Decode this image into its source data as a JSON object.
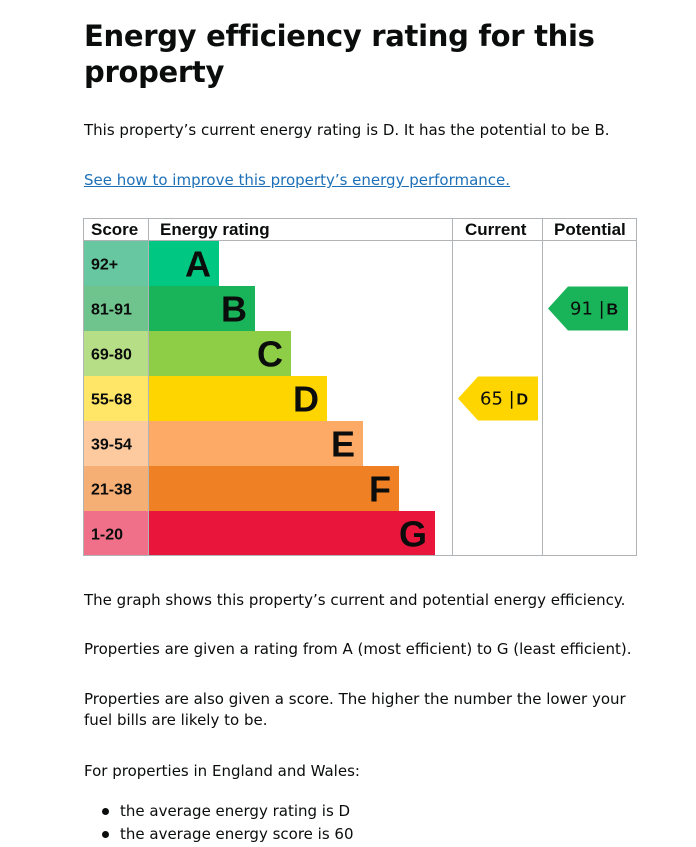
{
  "page": {
    "title": "Energy efficiency rating for this property",
    "intro": "This property’s current energy rating is D. It has the potential to be B.",
    "improve_link": "See how to improve this property’s energy performance.",
    "para1": "The graph shows this property’s current and potential energy efficiency.",
    "para2": "Properties are given a rating from A (most efficient) to G (least efficient).",
    "para3": "Properties are also given a score. The higher the number the lower your fuel bills are likely to be.",
    "para4": "For properties in England and Wales:",
    "bullets": [
      "the average energy rating is D",
      "the average energy score is 60"
    ]
  },
  "chart_data": {
    "type": "bar",
    "columns": [
      "Score",
      "Energy rating",
      "Current",
      "Potential"
    ],
    "bands": [
      {
        "score": "92+",
        "letter": "A",
        "color": "#00c781",
        "score_color": "#67c7a0"
      },
      {
        "score": "81-91",
        "letter": "B",
        "color": "#19b459",
        "score_color": "#6fc48e"
      },
      {
        "score": "69-80",
        "letter": "C",
        "color": "#8dce46",
        "score_color": "#b6de86"
      },
      {
        "score": "55-68",
        "letter": "D",
        "color": "#ffd500",
        "score_color": "#ffe666"
      },
      {
        "score": "39-54",
        "letter": "E",
        "color": "#fcaa65",
        "score_color": "#fdcaa0"
      },
      {
        "score": "21-38",
        "letter": "F",
        "color": "#ef8023",
        "score_color": "#f5ae74"
      },
      {
        "score": "1-20",
        "letter": "G",
        "color": "#e9153b",
        "score_color": "#f07089"
      }
    ],
    "current": {
      "value": 65,
      "letter": "D",
      "color": "#ffd500"
    },
    "potential": {
      "value": 91,
      "letter": "B",
      "color": "#19b459"
    }
  }
}
